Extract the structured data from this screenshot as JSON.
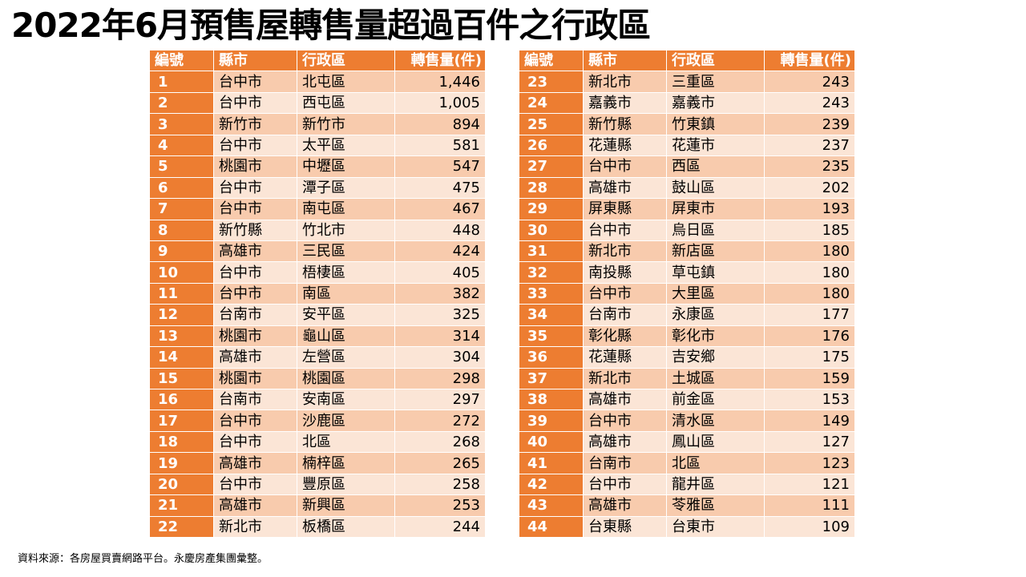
{
  "title": "2022年6月預售屋轉售量超過百件之行政區",
  "headers": {
    "no": "編號",
    "county": "縣市",
    "district": "行政區",
    "count": "轉售量(件)"
  },
  "rows": [
    {
      "no": "1",
      "county": "台中市",
      "district": "北屯區",
      "count": "1,446"
    },
    {
      "no": "2",
      "county": "台中市",
      "district": "西屯區",
      "count": "1,005"
    },
    {
      "no": "3",
      "county": "新竹市",
      "district": "新竹市",
      "count": "894"
    },
    {
      "no": "4",
      "county": "台中市",
      "district": "太平區",
      "count": "581"
    },
    {
      "no": "5",
      "county": "桃園市",
      "district": "中壢區",
      "count": "547"
    },
    {
      "no": "6",
      "county": "台中市",
      "district": "潭子區",
      "count": "475"
    },
    {
      "no": "7",
      "county": "台中市",
      "district": "南屯區",
      "count": "467"
    },
    {
      "no": "8",
      "county": "新竹縣",
      "district": "竹北市",
      "count": "448"
    },
    {
      "no": "9",
      "county": "高雄市",
      "district": "三民區",
      "count": "424"
    },
    {
      "no": "10",
      "county": "台中市",
      "district": "梧棲區",
      "count": "405"
    },
    {
      "no": "11",
      "county": "台中市",
      "district": "南區",
      "count": "382"
    },
    {
      "no": "12",
      "county": "台南市",
      "district": "安平區",
      "count": "325"
    },
    {
      "no": "13",
      "county": "桃園市",
      "district": "龜山區",
      "count": "314"
    },
    {
      "no": "14",
      "county": "高雄市",
      "district": "左營區",
      "count": "304"
    },
    {
      "no": "15",
      "county": "桃園市",
      "district": "桃園區",
      "count": "298"
    },
    {
      "no": "16",
      "county": "台南市",
      "district": "安南區",
      "count": "297"
    },
    {
      "no": "17",
      "county": "台中市",
      "district": "沙鹿區",
      "count": "272"
    },
    {
      "no": "18",
      "county": "台中市",
      "district": "北區",
      "count": "268"
    },
    {
      "no": "19",
      "county": "高雄市",
      "district": "楠梓區",
      "count": "265"
    },
    {
      "no": "20",
      "county": "台中市",
      "district": "豐原區",
      "count": "258"
    },
    {
      "no": "21",
      "county": "高雄市",
      "district": "新興區",
      "count": "253"
    },
    {
      "no": "22",
      "county": "新北市",
      "district": "板橋區",
      "count": "244"
    },
    {
      "no": "23",
      "county": "新北市",
      "district": "三重區",
      "count": "243"
    },
    {
      "no": "24",
      "county": "嘉義市",
      "district": "嘉義市",
      "count": "243"
    },
    {
      "no": "25",
      "county": "新竹縣",
      "district": "竹東鎮",
      "count": "239"
    },
    {
      "no": "26",
      "county": "花蓮縣",
      "district": "花蓮市",
      "count": "237"
    },
    {
      "no": "27",
      "county": "台中市",
      "district": "西區",
      "count": "235"
    },
    {
      "no": "28",
      "county": "高雄市",
      "district": "鼓山區",
      "count": "202"
    },
    {
      "no": "29",
      "county": "屏東縣",
      "district": "屏東市",
      "count": "193"
    },
    {
      "no": "30",
      "county": "台中市",
      "district": "烏日區",
      "count": "185"
    },
    {
      "no": "31",
      "county": "新北市",
      "district": "新店區",
      "count": "180"
    },
    {
      "no": "32",
      "county": "南投縣",
      "district": "草屯鎮",
      "count": "180"
    },
    {
      "no": "33",
      "county": "台中市",
      "district": "大里區",
      "count": "180"
    },
    {
      "no": "34",
      "county": "台南市",
      "district": "永康區",
      "count": "177"
    },
    {
      "no": "35",
      "county": "彰化縣",
      "district": "彰化市",
      "count": "176"
    },
    {
      "no": "36",
      "county": "花蓮縣",
      "district": "吉安鄉",
      "count": "175"
    },
    {
      "no": "37",
      "county": "新北市",
      "district": "土城區",
      "count": "159"
    },
    {
      "no": "38",
      "county": "高雄市",
      "district": "前金區",
      "count": "153"
    },
    {
      "no": "39",
      "county": "台中市",
      "district": "清水區",
      "count": "149"
    },
    {
      "no": "40",
      "county": "高雄市",
      "district": "鳳山區",
      "count": "127"
    },
    {
      "no": "41",
      "county": "台南市",
      "district": "北區",
      "count": "123"
    },
    {
      "no": "42",
      "county": "台中市",
      "district": "龍井區",
      "count": "121"
    },
    {
      "no": "43",
      "county": "高雄市",
      "district": "苓雅區",
      "count": "111"
    },
    {
      "no": "44",
      "county": "台東縣",
      "district": "台東市",
      "count": "109"
    }
  ],
  "source": "資料來源：各房屋買賣網路平台。永慶房產集團彙整。",
  "colors": {
    "header": "#ed7d31",
    "row_dark": "#f8cbad",
    "row_light": "#fbe5d6"
  }
}
